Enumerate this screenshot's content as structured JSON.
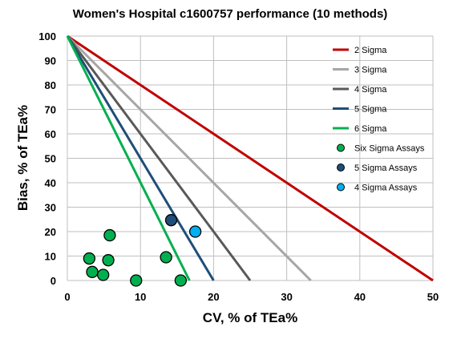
{
  "chart_data": {
    "type": "scatter",
    "title": "Women's Hospital c1600757 performance (10 methods)",
    "xlabel": "CV, % of TEa%",
    "ylabel": "Bias, % of TEa%",
    "xlim": [
      0,
      50
    ],
    "ylim": [
      0,
      100
    ],
    "xticks": [
      "0",
      "10",
      "20",
      "30",
      "40",
      "50"
    ],
    "yticks": [
      "0",
      "10",
      "20",
      "30",
      "40",
      "50",
      "60",
      "70",
      "80",
      "90",
      "100"
    ],
    "grid": true,
    "legend_position": "right",
    "lines": [
      {
        "name": "2 Sigma",
        "x": [
          0,
          50
        ],
        "y": [
          100,
          0
        ],
        "color": "#c00000"
      },
      {
        "name": "3 Sigma",
        "x": [
          0,
          33.3
        ],
        "y": [
          100,
          0
        ],
        "color": "#a6a6a6"
      },
      {
        "name": "4 Sigma",
        "x": [
          0,
          25
        ],
        "y": [
          100,
          0
        ],
        "color": "#595959"
      },
      {
        "name": "5 Sigma",
        "x": [
          0,
          20
        ],
        "y": [
          100,
          0
        ],
        "color": "#1f4e79"
      },
      {
        "name": "6 Sigma",
        "x": [
          0,
          16.7
        ],
        "y": [
          100,
          0
        ],
        "color": "#00b050"
      }
    ],
    "series": [
      {
        "name": "Six Sigma Assays",
        "color": "#00b050",
        "points": [
          {
            "x": 3.0,
            "y": 9.0
          },
          {
            "x": 3.4,
            "y": 3.5
          },
          {
            "x": 4.9,
            "y": 2.3
          },
          {
            "x": 5.6,
            "y": 8.3
          },
          {
            "x": 5.8,
            "y": 18.5
          },
          {
            "x": 9.4,
            "y": 0.0
          },
          {
            "x": 13.5,
            "y": 9.5
          },
          {
            "x": 15.5,
            "y": 0.0
          }
        ]
      },
      {
        "name": "5 Sigma Assays",
        "color": "#1f4e79",
        "points": [
          {
            "x": 14.2,
            "y": 24.7
          }
        ]
      },
      {
        "name": "4 Sigma Assays",
        "color": "#00b0f0",
        "points": [
          {
            "x": 17.5,
            "y": 20.0
          }
        ]
      }
    ]
  }
}
